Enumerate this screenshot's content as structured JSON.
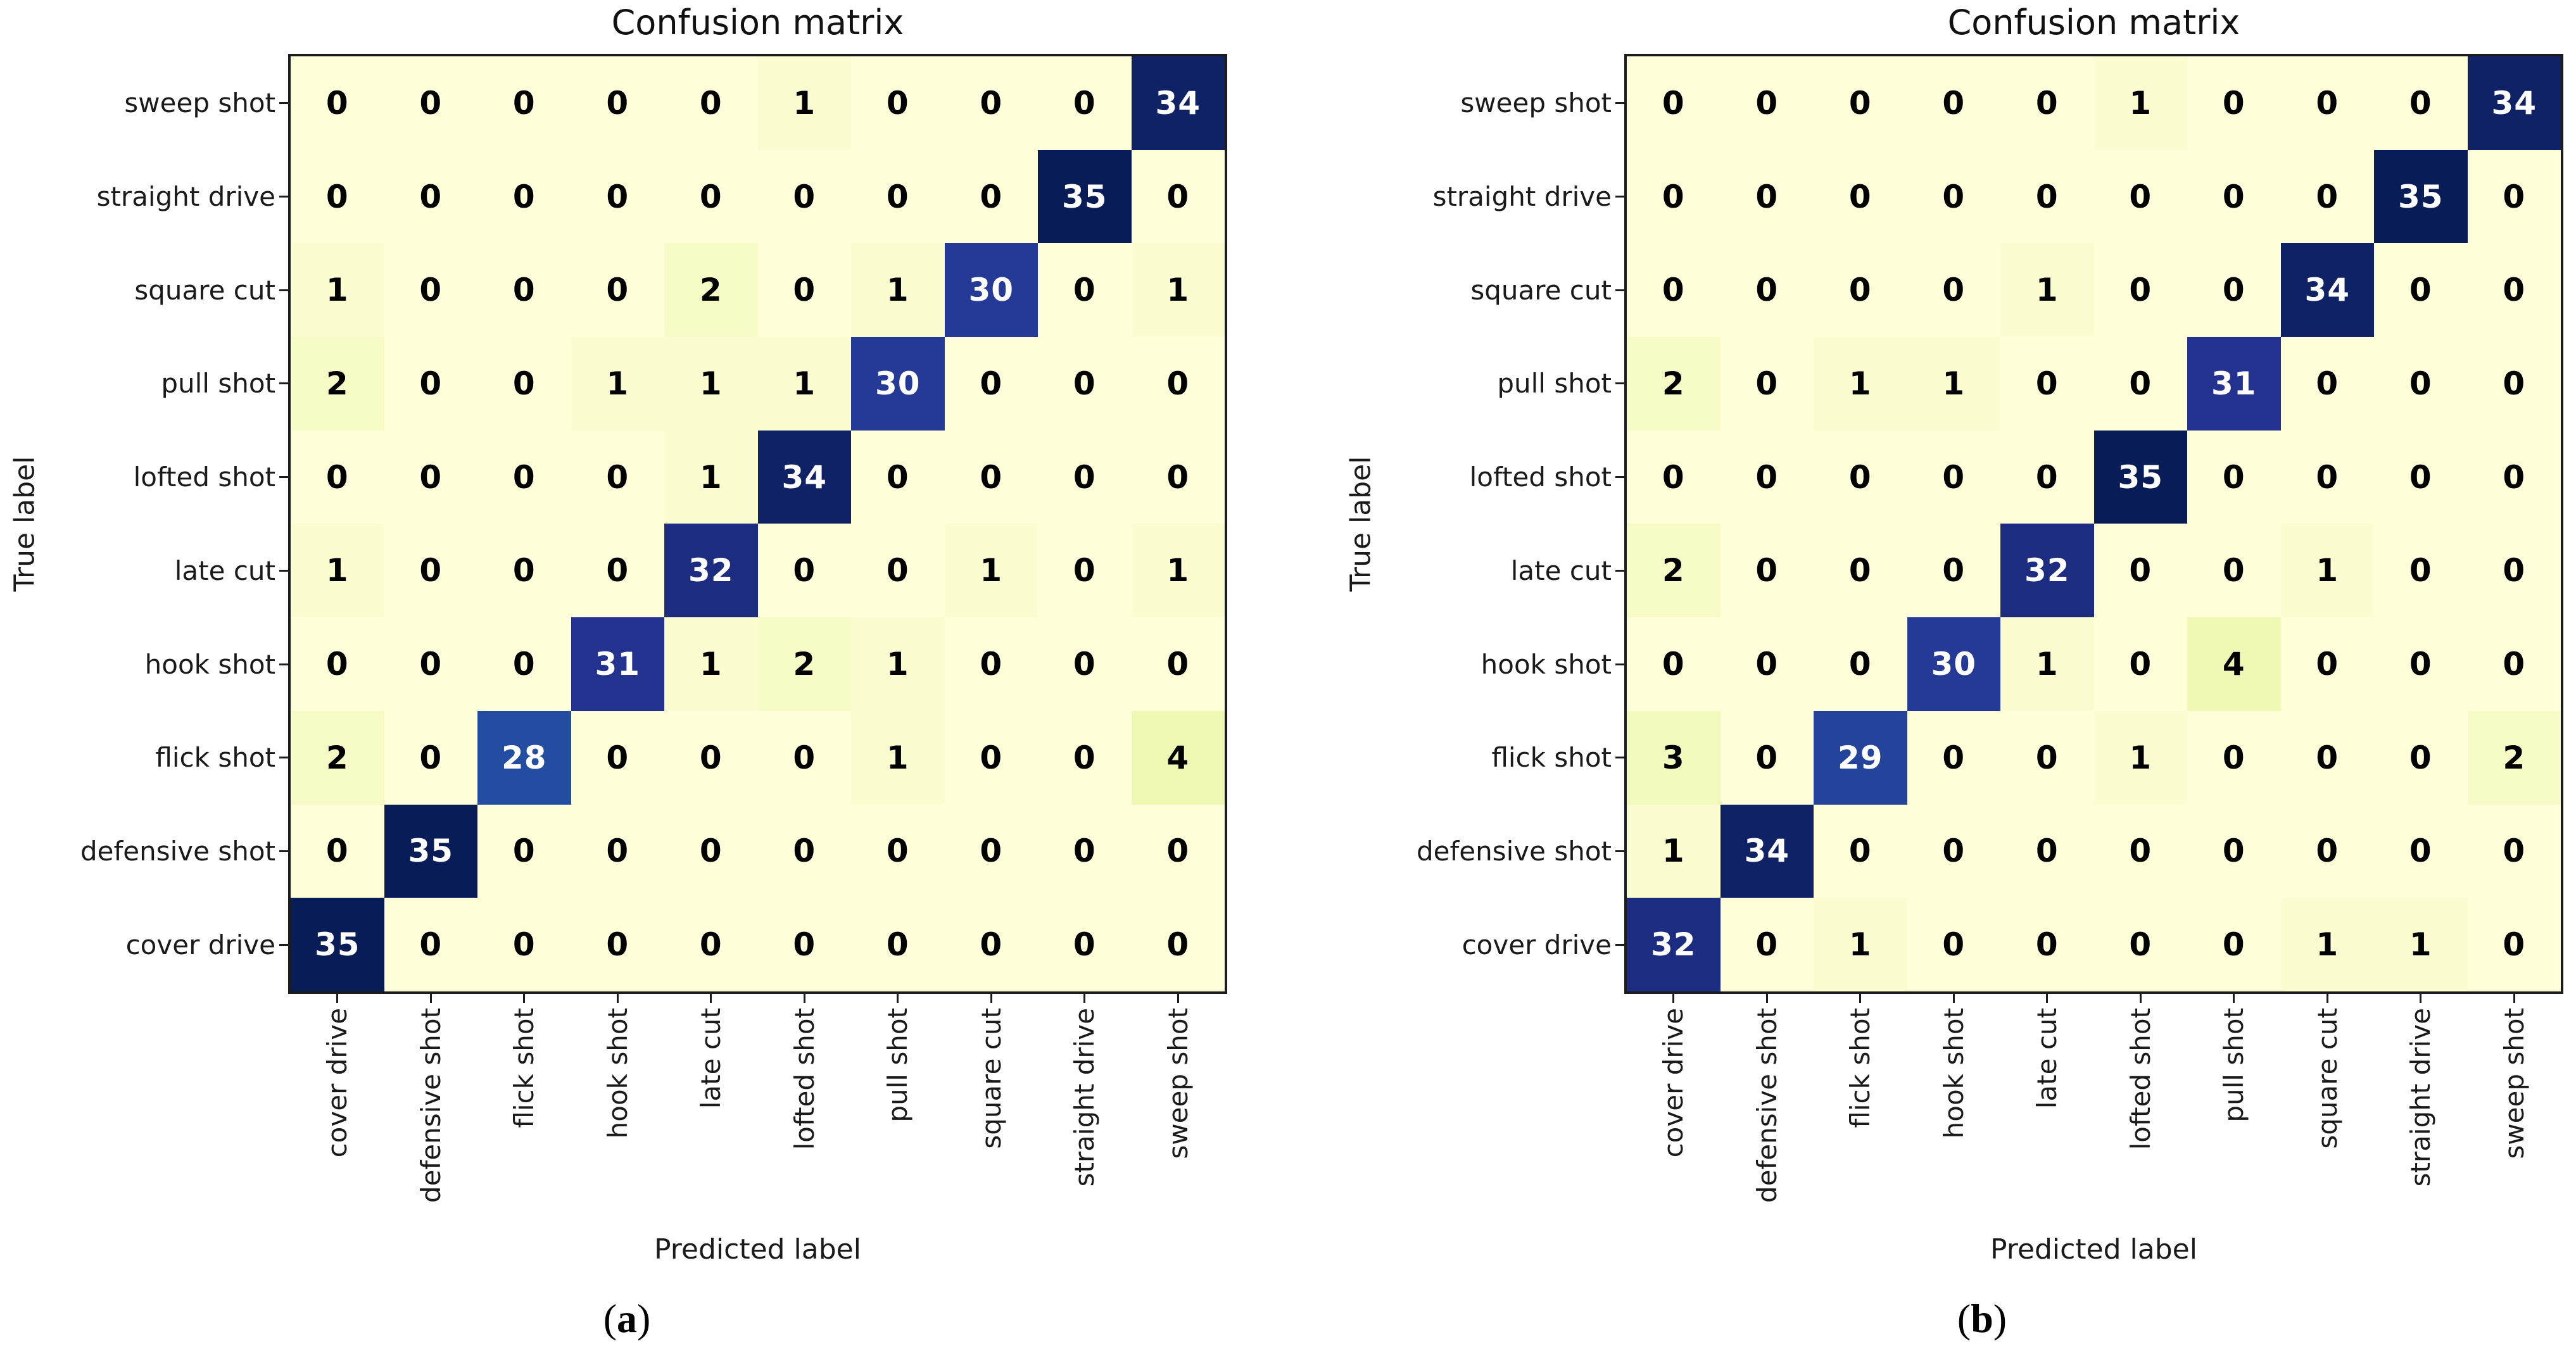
{
  "chart_data": [
    {
      "type": "heatmap",
      "panel": "a",
      "title": "Confusion matrix",
      "xlabel": "Predicted label",
      "ylabel": "True label",
      "caption_parts": [
        "(",
        "a",
        ")"
      ],
      "row_labels": [
        "sweep shot",
        "straight drive",
        "square cut",
        "pull shot",
        "lofted shot",
        "late cut",
        "hook shot",
        "flick shot",
        "defensive shot",
        "cover drive"
      ],
      "col_labels": [
        "cover drive",
        "defensive shot",
        "flick shot",
        "hook shot",
        "late cut",
        "lofted shot",
        "pull shot",
        "square cut",
        "straight drive",
        "sweep shot"
      ],
      "matrix": [
        [
          0,
          0,
          0,
          0,
          0,
          1,
          0,
          0,
          0,
          34
        ],
        [
          0,
          0,
          0,
          0,
          0,
          0,
          0,
          0,
          35,
          0
        ],
        [
          1,
          0,
          0,
          0,
          2,
          0,
          1,
          30,
          0,
          1
        ],
        [
          2,
          0,
          0,
          1,
          1,
          1,
          30,
          0,
          0,
          0
        ],
        [
          0,
          0,
          0,
          0,
          1,
          34,
          0,
          0,
          0,
          0
        ],
        [
          1,
          0,
          0,
          0,
          32,
          0,
          0,
          1,
          0,
          1
        ],
        [
          0,
          0,
          0,
          31,
          1,
          2,
          1,
          0,
          0,
          0
        ],
        [
          2,
          0,
          28,
          0,
          0,
          0,
          1,
          0,
          0,
          4
        ],
        [
          0,
          35,
          0,
          0,
          0,
          0,
          0,
          0,
          0,
          0
        ],
        [
          35,
          0,
          0,
          0,
          0,
          0,
          0,
          0,
          0,
          0
        ]
      ],
      "vmin": 0,
      "vmax": 35,
      "colormap": "YlGnBu",
      "colorbar": false,
      "grid": false
    },
    {
      "type": "heatmap",
      "panel": "b",
      "title": "Confusion matrix",
      "xlabel": "Predicted label",
      "ylabel": "True label",
      "caption_parts": [
        "(",
        "b",
        ")"
      ],
      "row_labels": [
        "sweep shot",
        "straight drive",
        "square cut",
        "pull shot",
        "lofted shot",
        "late cut",
        "hook shot",
        "flick shot",
        "defensive shot",
        "cover drive"
      ],
      "col_labels": [
        "cover drive",
        "defensive shot",
        "flick shot",
        "hook shot",
        "late cut",
        "lofted shot",
        "pull shot",
        "square cut",
        "straight drive",
        "sweep shot"
      ],
      "matrix": [
        [
          0,
          0,
          0,
          0,
          0,
          1,
          0,
          0,
          0,
          34
        ],
        [
          0,
          0,
          0,
          0,
          0,
          0,
          0,
          0,
          35,
          0
        ],
        [
          0,
          0,
          0,
          0,
          1,
          0,
          0,
          34,
          0,
          0
        ],
        [
          2,
          0,
          1,
          1,
          0,
          0,
          31,
          0,
          0,
          0
        ],
        [
          0,
          0,
          0,
          0,
          0,
          35,
          0,
          0,
          0,
          0
        ],
        [
          2,
          0,
          0,
          0,
          32,
          0,
          0,
          1,
          0,
          0
        ],
        [
          0,
          0,
          0,
          30,
          1,
          0,
          4,
          0,
          0,
          0
        ],
        [
          3,
          0,
          29,
          0,
          0,
          1,
          0,
          0,
          0,
          2
        ],
        [
          1,
          34,
          0,
          0,
          0,
          0,
          0,
          0,
          0,
          0
        ],
        [
          32,
          0,
          1,
          0,
          0,
          0,
          0,
          1,
          1,
          0
        ]
      ],
      "vmin": 0,
      "vmax": 35,
      "colormap": "YlGnBu",
      "colorbar": false,
      "grid": false
    }
  ],
  "colors": {
    "background": "#ffffff",
    "spine": "#1c1c1c",
    "tick": "#1c1c1c",
    "text": "#1a1a1a",
    "cell_text_dark": "#000000",
    "cell_text_light": "#ffffff",
    "colormap_stops": [
      "#ffffd9",
      "#edf8b1",
      "#c7e9b4",
      "#7fcdbb",
      "#41b6c4",
      "#1d91c0",
      "#225ea8",
      "#253494",
      "#081d58"
    ]
  }
}
